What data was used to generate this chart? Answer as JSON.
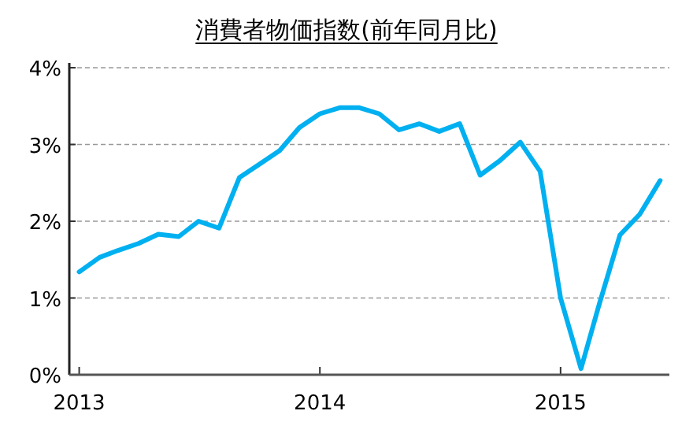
{
  "chart_data": {
    "type": "line",
    "title": "消費者物価指数(前年同月比)",
    "x": [
      "2013-01",
      "2013-02",
      "2013-03",
      "2013-04",
      "2013-05",
      "2013-06",
      "2013-07",
      "2013-08",
      "2013-09",
      "2013-10",
      "2013-11",
      "2013-12",
      "2014-01",
      "2014-02",
      "2014-03",
      "2014-04",
      "2014-05",
      "2014-06",
      "2014-07",
      "2014-08",
      "2014-09",
      "2014-10",
      "2014-11",
      "2014-12",
      "2015-01",
      "2015-02",
      "2015-03",
      "2015-04",
      "2015-05",
      "2015-06"
    ],
    "series": [
      {
        "color": "#00b0f0",
        "values": [
          1.34,
          1.53,
          1.62,
          1.71,
          1.83,
          1.8,
          2.0,
          1.91,
          2.57,
          2.74,
          2.92,
          3.22,
          3.4,
          3.48,
          3.48,
          3.4,
          3.19,
          3.27,
          3.17,
          3.27,
          2.6,
          2.79,
          3.03,
          2.65,
          1.0,
          0.08,
          0.93,
          1.82,
          2.09,
          2.53
        ]
      }
    ],
    "xlim": [
      "2012-12-17",
      "2015-06-15"
    ],
    "xticks": [
      "2013",
      "2014",
      "2015"
    ],
    "ylim": [
      0,
      4
    ],
    "yticks": [
      {
        "value": 0,
        "label": "0%"
      },
      {
        "value": 1,
        "label": "1%"
      },
      {
        "value": 2,
        "label": "2%"
      },
      {
        "value": 3,
        "label": "3%"
      },
      {
        "value": 4,
        "label": "4%"
      }
    ],
    "grid": "y",
    "line_style": "solid",
    "marker": "none"
  }
}
